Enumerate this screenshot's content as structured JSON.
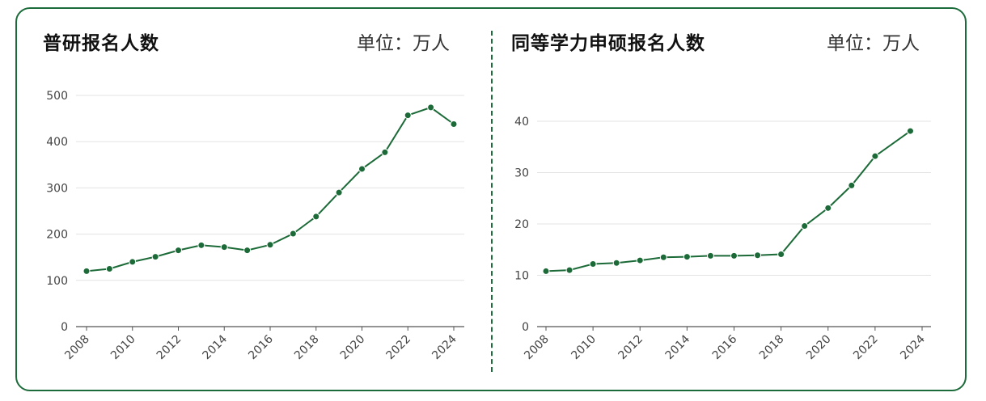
{
  "colors": {
    "accent": "#1c6b3a",
    "line": "#1b6a37",
    "grid": "#e3e3e3"
  },
  "chart_data": [
    {
      "type": "line",
      "title": "普研报名人数",
      "unit_label": "单位：万人",
      "x": [
        2008,
        2009,
        2010,
        2011,
        2012,
        2013,
        2014,
        2015,
        2016,
        2017,
        2018,
        2019,
        2020,
        2021,
        2022,
        2023,
        2024
      ],
      "values": [
        120,
        125,
        140,
        151,
        165,
        176,
        172,
        165,
        177,
        201,
        238,
        290,
        341,
        377,
        457,
        474,
        438
      ],
      "xticks": [
        2008,
        2010,
        2012,
        2014,
        2016,
        2018,
        2020,
        2022,
        2024
      ],
      "yticks": [
        0,
        100,
        200,
        300,
        400,
        500
      ],
      "ylim": [
        0,
        500
      ],
      "grid": true
    },
    {
      "type": "line",
      "title": "同等学力申硕报名人数",
      "unit_label": "单位：万人",
      "x": [
        2008,
        2009,
        2010,
        2011,
        2012,
        2013,
        2014,
        2015,
        2016,
        2017,
        2018,
        2019,
        2020,
        2021,
        2022,
        2023.5
      ],
      "values": [
        10.8,
        11.0,
        12.2,
        12.4,
        12.9,
        13.5,
        13.6,
        13.8,
        13.8,
        13.9,
        14.1,
        19.6,
        23.1,
        27.5,
        33.2,
        38.1
      ],
      "xticks": [
        2008,
        2010,
        2012,
        2014,
        2016,
        2018,
        2020,
        2022,
        2024
      ],
      "yticks": [
        0,
        10,
        20,
        30,
        40
      ],
      "ylim": [
        0,
        40
      ],
      "grid": true
    }
  ]
}
